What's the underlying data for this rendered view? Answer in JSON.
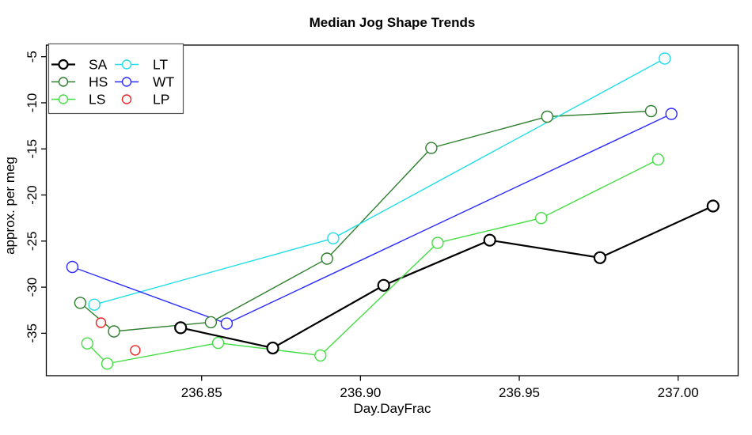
{
  "chart_data": {
    "type": "line",
    "title": "Median Jog Shape Trends",
    "xlabel": "Day.DayFrac",
    "ylabel": "approx. per meg",
    "xlim": [
      236.8011,
      237.0189
    ],
    "ylim": [
      -39.6,
      -3.74
    ],
    "grid": false,
    "legend_position": "topleft",
    "xticks": {
      "values": [
        236.85,
        236.9,
        236.95,
        237.0
      ],
      "labels": [
        "236.85",
        "236.90",
        "236.95",
        "237.00"
      ]
    },
    "yticks": {
      "values": [
        -5,
        -10,
        -15,
        -20,
        -25,
        -30,
        -35
      ],
      "labels": [
        "-5",
        "-10",
        "-15",
        "-20",
        "-25",
        "-30",
        "-35"
      ]
    },
    "series": [
      {
        "name": "SA",
        "color": "#000000",
        "line": true,
        "line_width": 2.2,
        "marker": "open-circle",
        "points": [
          [
            236.8434,
            -34.4
          ],
          [
            236.8724,
            -36.6
          ],
          [
            236.9073,
            -29.8
          ],
          [
            236.9407,
            -24.9
          ],
          [
            236.9754,
            -26.8
          ],
          [
            237.011,
            -21.2
          ]
        ]
      },
      {
        "name": "HS",
        "color": "#2d7f2d",
        "line": true,
        "line_width": 1.4,
        "marker": "open-circle",
        "points": [
          [
            236.8118,
            -31.7
          ],
          [
            236.8224,
            -34.8
          ],
          [
            236.8529,
            -33.8
          ],
          [
            236.8895,
            -26.9
          ],
          [
            236.9223,
            -14.9
          ],
          [
            236.9588,
            -11.5
          ],
          [
            236.9915,
            -10.9
          ]
        ]
      },
      {
        "name": "LS",
        "color": "#44dd44",
        "line": true,
        "line_width": 1.4,
        "marker": "open-circle",
        "points": [
          [
            236.814,
            -36.1
          ],
          [
            236.8203,
            -38.3
          ],
          [
            236.8552,
            -36.05
          ],
          [
            236.8874,
            -37.4
          ],
          [
            236.9243,
            -25.2
          ],
          [
            236.9569,
            -22.5
          ],
          [
            236.9937,
            -16.15
          ]
        ]
      },
      {
        "name": "LT",
        "color": "#22dde8",
        "line": true,
        "line_width": 1.4,
        "marker": "open-circle",
        "points": [
          [
            236.8162,
            -31.9
          ],
          [
            236.8914,
            -24.7
          ],
          [
            236.9958,
            -5.2
          ]
        ]
      },
      {
        "name": "WT",
        "color": "#2b2bff",
        "line": true,
        "line_width": 1.4,
        "marker": "open-circle",
        "points": [
          [
            236.8093,
            -27.8
          ],
          [
            236.8579,
            -33.95
          ],
          [
            236.9979,
            -11.2
          ]
        ]
      },
      {
        "name": "LP",
        "color": "#ee2222",
        "line": false,
        "line_width": 1.4,
        "marker": "open-circle",
        "points": [
          [
            236.8183,
            -33.85
          ],
          [
            236.8291,
            -36.85
          ]
        ]
      }
    ],
    "legend": {
      "columns": [
        [
          "SA",
          "HS",
          "LS"
        ],
        [
          "LT",
          "WT",
          "LP"
        ]
      ]
    }
  }
}
